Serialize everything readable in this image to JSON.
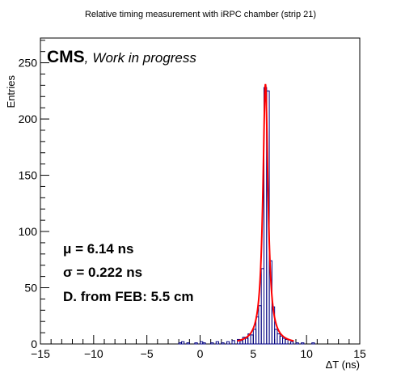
{
  "chart_data": {
    "type": "histogram",
    "title": "Relative timing measurement with iRPC chamber (strip 21)",
    "xlabel": "ΔT (ns)",
    "ylabel": "Entries",
    "xlim": [
      -15,
      15
    ],
    "ylim": [
      0,
      272
    ],
    "x_ticks": [
      -15,
      -10,
      -5,
      0,
      5,
      10,
      15
    ],
    "y_ticks": [
      0,
      50,
      100,
      150,
      200,
      250
    ],
    "histogram": {
      "bin_width": 0.25,
      "color": "#000080",
      "bins": [
        {
          "x": -2.0,
          "y": 1
        },
        {
          "x": -1.75,
          "y": 2
        },
        {
          "x": -1.25,
          "y": 1
        },
        {
          "x": -0.5,
          "y": 1
        },
        {
          "x": 0.0,
          "y": 2
        },
        {
          "x": 0.25,
          "y": 1
        },
        {
          "x": 1.0,
          "y": 1
        },
        {
          "x": 1.5,
          "y": 2
        },
        {
          "x": 2.0,
          "y": 1
        },
        {
          "x": 2.5,
          "y": 2
        },
        {
          "x": 3.0,
          "y": 3
        },
        {
          "x": 3.5,
          "y": 4
        },
        {
          "x": 3.75,
          "y": 3
        },
        {
          "x": 4.0,
          "y": 6
        },
        {
          "x": 4.25,
          "y": 5
        },
        {
          "x": 4.5,
          "y": 9
        },
        {
          "x": 4.75,
          "y": 8
        },
        {
          "x": 5.0,
          "y": 13
        },
        {
          "x": 5.25,
          "y": 24
        },
        {
          "x": 5.5,
          "y": 34
        },
        {
          "x": 5.75,
          "y": 67
        },
        {
          "x": 6.0,
          "y": 228
        },
        {
          "x": 6.25,
          "y": 225
        },
        {
          "x": 6.5,
          "y": 74
        },
        {
          "x": 6.75,
          "y": 33
        },
        {
          "x": 7.0,
          "y": 13
        },
        {
          "x": 7.25,
          "y": 9
        },
        {
          "x": 7.5,
          "y": 7
        },
        {
          "x": 7.75,
          "y": 5
        },
        {
          "x": 8.0,
          "y": 4
        },
        {
          "x": 8.5,
          "y": 2
        },
        {
          "x": 9.0,
          "y": 1
        },
        {
          "x": 9.5,
          "y": 1
        },
        {
          "x": 10.5,
          "y": 1
        }
      ]
    },
    "fit": {
      "type": "line",
      "color": "#ff0000",
      "mean": 6.14,
      "sigma": 0.222,
      "peak": 231,
      "x_range": [
        3.5,
        8.8
      ]
    },
    "annotations": {
      "cms": "CMS",
      "comma": ",",
      "work_in_progress": "Work in progress",
      "mu": "μ = 6.14 ns",
      "sigma": "σ = 0.222 ns",
      "feb_distance": "D. from FEB: 5.5 cm"
    }
  }
}
